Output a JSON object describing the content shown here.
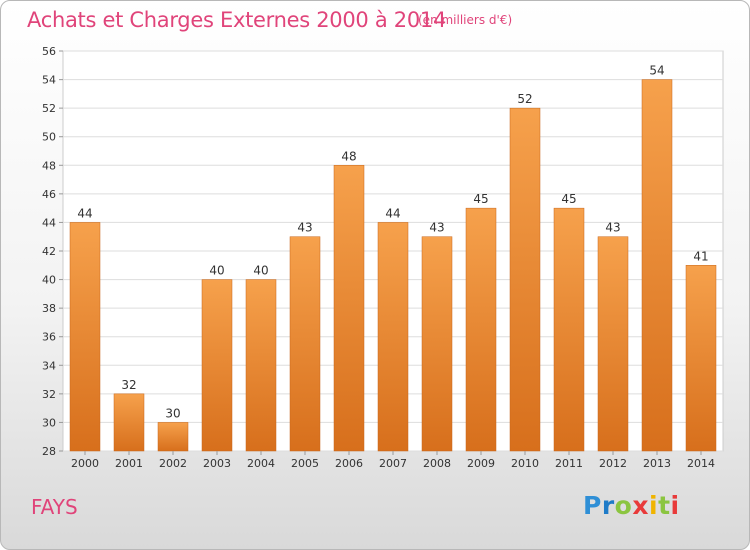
{
  "header": {
    "title": "Achats et Charges Externes 2000 à 2014",
    "unit": "(en milliers d'€)"
  },
  "footer": {
    "place": "FAYS",
    "logo_letters": [
      "P",
      "r",
      "o",
      "x",
      "i",
      "t",
      "i"
    ],
    "logo_colors": [
      "#2f8fd6",
      "#1e7bc8",
      "#8bc540",
      "#e83a3a",
      "#f0b400",
      "#8bc540",
      "#e83a3a"
    ]
  },
  "chart_data": {
    "type": "bar",
    "categories": [
      "2000",
      "2001",
      "2002",
      "2003",
      "2004",
      "2005",
      "2006",
      "2007",
      "2008",
      "2009",
      "2010",
      "2011",
      "2012",
      "2013",
      "2014"
    ],
    "values": [
      44,
      32,
      30,
      40,
      40,
      43,
      48,
      44,
      43,
      45,
      52,
      45,
      43,
      54,
      41
    ],
    "ylim": [
      28,
      56
    ],
    "yticks": [
      28,
      30,
      32,
      34,
      36,
      38,
      40,
      42,
      44,
      46,
      48,
      50,
      52,
      54,
      56
    ],
    "grid": true,
    "bar_color_top": "#f6a14c",
    "bar_color_bottom": "#d76f1c"
  }
}
